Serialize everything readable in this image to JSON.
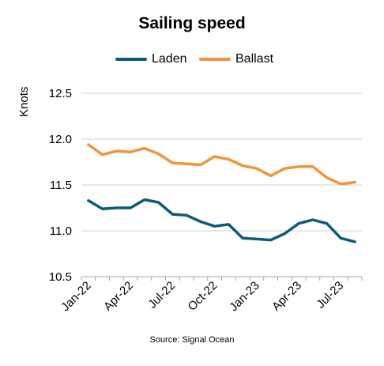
{
  "chart_data": {
    "type": "line",
    "title": "Sailing speed",
    "ylabel": "Knots",
    "xlabel": "",
    "source": "Source: Signal Ocean",
    "ylim": [
      10.5,
      12.5
    ],
    "yticks": [
      "10.5",
      "11.0",
      "11.5",
      "12.0",
      "12.5"
    ],
    "x": [
      "Jan-22",
      "Feb-22",
      "Mar-22",
      "Apr-22",
      "May-22",
      "Jun-22",
      "Jul-22",
      "Aug-22",
      "Sep-22",
      "Oct-22",
      "Nov-22",
      "Dec-22",
      "Jan-23",
      "Feb-23",
      "Mar-23",
      "Apr-23",
      "May-23",
      "Jun-23",
      "Jul-23",
      "Aug-23"
    ],
    "xtick_labels": [
      "Jan-22",
      "Apr-22",
      "Jul-22",
      "Oct-22",
      "Jan-23",
      "Apr-23",
      "Jul-23"
    ],
    "grid": true,
    "legend_position": "top",
    "series": [
      {
        "name": "Laden",
        "color": "#0e5a78",
        "values": [
          11.33,
          11.24,
          11.25,
          11.25,
          11.34,
          11.31,
          11.18,
          11.17,
          11.1,
          11.05,
          11.07,
          10.92,
          10.91,
          10.9,
          10.97,
          11.08,
          11.12,
          11.08,
          10.92,
          10.88
        ]
      },
      {
        "name": "Ballast",
        "color": "#f0953a",
        "values": [
          11.94,
          11.83,
          11.87,
          11.86,
          11.9,
          11.84,
          11.74,
          11.73,
          11.72,
          11.81,
          11.78,
          11.71,
          11.68,
          11.6,
          11.68,
          11.7,
          11.7,
          11.58,
          11.51,
          11.53
        ]
      }
    ]
  }
}
